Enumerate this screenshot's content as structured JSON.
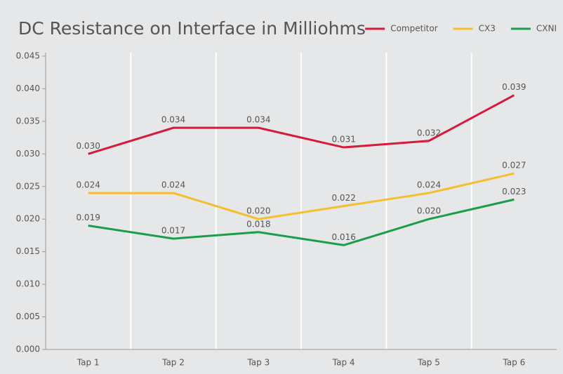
{
  "chart_data": {
    "type": "line",
    "title": "DC Resistance on Interface in Milliohms",
    "categories": [
      "Tap 1",
      "Tap 2",
      "Tap 3",
      "Tap 4",
      "Tap 5",
      "Tap 6"
    ],
    "series": [
      {
        "name": "Competitor",
        "color": "#d7193a",
        "values": [
          0.03,
          0.034,
          0.034,
          0.031,
          0.032,
          0.039
        ],
        "value_labels": [
          "0.030",
          "0.034",
          "0.034",
          "0.031",
          "0.032",
          "0.039"
        ]
      },
      {
        "name": "CX3",
        "color": "#f6be2c",
        "values": [
          0.024,
          0.024,
          0.02,
          0.022,
          0.024,
          0.027
        ],
        "value_labels": [
          "0.024",
          "0.024",
          "0.020",
          "0.022",
          "0.024",
          "0.027"
        ]
      },
      {
        "name": "CXNI",
        "color": "#1a9e4a",
        "values": [
          0.019,
          0.017,
          0.018,
          0.016,
          0.02,
          0.023
        ],
        "value_labels": [
          "0.019",
          "0.017",
          "0.018",
          "0.016",
          "0.020",
          "0.023"
        ]
      }
    ],
    "ylim": [
      0,
      0.045
    ],
    "yticks": [
      {
        "value": 0,
        "label": "0.000"
      },
      {
        "value": 0.005,
        "label": "0.005"
      },
      {
        "value": 0.01,
        "label": "0.010"
      },
      {
        "value": 0.015,
        "label": "0.015"
      },
      {
        "value": 0.02,
        "label": "0.020"
      },
      {
        "value": 0.025,
        "label": "0.025"
      },
      {
        "value": 0.03,
        "label": "0.030"
      },
      {
        "value": 0.035,
        "label": "0.035"
      },
      {
        "value": 0.04,
        "label": "0.040"
      },
      {
        "value": 0.045,
        "label": "0.045"
      }
    ],
    "grid": "vertical",
    "legend": "top-right"
  }
}
